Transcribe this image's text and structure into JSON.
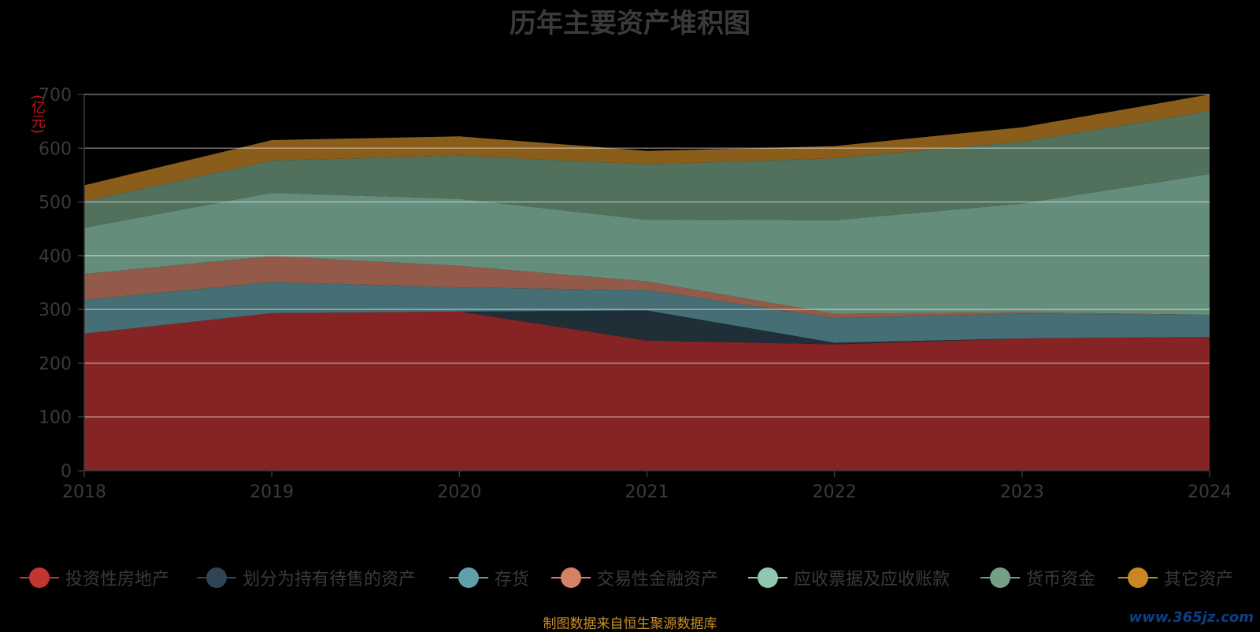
{
  "chart_data": {
    "type": "area",
    "stacked": true,
    "title": "历年主要资产堆积图",
    "ylabel": "(亿元)",
    "xlabel": "",
    "ylim": [
      0,
      700
    ],
    "yticks": [
      "0",
      "100",
      "200",
      "300",
      "400",
      "500",
      "600",
      "700"
    ],
    "categories": [
      "2018",
      "2019",
      "2020",
      "2021",
      "2022",
      "2023",
      "2024"
    ],
    "series": [
      {
        "name": "投资性房地产",
        "color": "#c23531",
        "fill": "#862425",
        "values": [
          255,
          293,
          296,
          242,
          235,
          246,
          249
        ]
      },
      {
        "name": "划分为持有待售的资产",
        "color": "#2f4554",
        "fill": "#202e38",
        "values": [
          0,
          0,
          0,
          56,
          3,
          0,
          0
        ]
      },
      {
        "name": "存货",
        "color": "#61a0a8",
        "fill": "#456f74",
        "values": [
          63,
          58,
          45,
          38,
          46,
          46,
          41
        ]
      },
      {
        "name": "交易性金融资产",
        "color": "#d48265",
        "fill": "#935a4a",
        "values": [
          48,
          48,
          40,
          16,
          8,
          3,
          0
        ]
      },
      {
        "name": "应收票据及应收账款",
        "color": "#91c7ae",
        "fill": "#658d7b",
        "values": [
          86,
          118,
          125,
          115,
          174,
          202,
          262
        ]
      },
      {
        "name": "货币资金",
        "color": "#749f83",
        "fill": "#51715d",
        "values": [
          49,
          60,
          80,
          103,
          115,
          115,
          117
        ]
      },
      {
        "name": "其它资产",
        "color": "#ca8622",
        "fill": "#8a5d1b",
        "values": [
          30,
          38,
          36,
          25,
          23,
          27,
          31
        ]
      }
    ]
  },
  "footer": {
    "source": "制图数据来自恒生聚源数据库",
    "watermark": "www.365jz.com"
  }
}
